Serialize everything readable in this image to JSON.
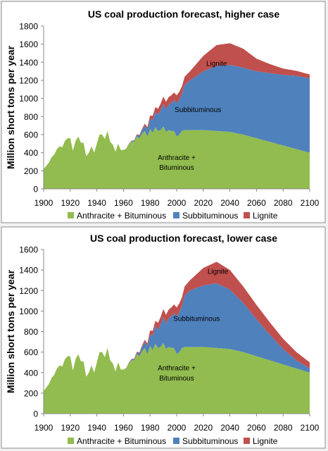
{
  "colors": {
    "anthracite_bituminous": "#92bc4f",
    "subbituminous": "#4f81bd",
    "lignite": "#c0504d",
    "frame": "#8c8c8c",
    "background": "#ffffff",
    "axis": "#888888",
    "text": "#000000"
  },
  "chart_data": [
    {
      "type": "area",
      "stacked": true,
      "title": "US coal production forecast, higher case",
      "xlabel": "",
      "ylabel": "Million short tons per year",
      "xlim": [
        1900,
        2100
      ],
      "ylim": [
        0,
        1800
      ],
      "x_ticks": [
        "1900",
        "1920",
        "1940",
        "1960",
        "1980",
        "2000",
        "2020",
        "2040",
        "2060",
        "2080",
        "2100"
      ],
      "y_ticks": [
        "0",
        "200",
        "400",
        "600",
        "800",
        "1000",
        "1200",
        "1400",
        "1600",
        "1800"
      ],
      "grid": false,
      "legend_position": "bottom",
      "legend": [
        "Anthracite + Bituminous",
        "Subbituminous",
        "Lignite"
      ],
      "annotations": [
        {
          "text": "Anthracite +",
          "x": 2000,
          "y": 350
        },
        {
          "text": "Bituminous",
          "x": 2000,
          "y": 240
        },
        {
          "text": "Subbituminous",
          "x": 2016,
          "y": 880
        },
        {
          "text": "Lignite",
          "x": 2030,
          "y": 1390
        }
      ],
      "series": [
        {
          "name": "Anthracite + Bituminous",
          "x": [
            1900,
            1902,
            1904,
            1906,
            1908,
            1910,
            1912,
            1914,
            1916,
            1918,
            1920,
            1922,
            1924,
            1926,
            1928,
            1930,
            1932,
            1934,
            1936,
            1938,
            1940,
            1942,
            1944,
            1946,
            1948,
            1950,
            1952,
            1954,
            1956,
            1958,
            1960,
            1962,
            1964,
            1966,
            1968,
            1970,
            1972,
            1974,
            1976,
            1978,
            1980,
            1982,
            1984,
            1986,
            1988,
            1990,
            1992,
            1994,
            1996,
            1998,
            2000,
            2002,
            2004,
            2006,
            2010,
            2020,
            2030,
            2040,
            2050,
            2060,
            2070,
            2080,
            2090,
            2100
          ],
          "values": [
            220,
            255,
            290,
            350,
            380,
            440,
            470,
            460,
            530,
            560,
            560,
            420,
            530,
            580,
            510,
            510,
            360,
            400,
            470,
            400,
            500,
            600,
            600,
            550,
            640,
            520,
            490,
            410,
            500,
            430,
            430,
            440,
            490,
            520,
            520,
            580,
            560,
            610,
            640,
            580,
            660,
            620,
            680,
            640,
            650,
            690,
            630,
            650,
            640,
            640,
            580,
            600,
            640,
            650,
            650,
            650,
            640,
            630,
            600,
            560,
            520,
            480,
            440,
            400
          ]
        },
        {
          "name": "Subbituminous",
          "x": [
            1900,
            1960,
            1964,
            1968,
            1970,
            1972,
            1974,
            1976,
            1978,
            1980,
            1982,
            1984,
            1986,
            1988,
            1990,
            1992,
            1994,
            1996,
            1998,
            2000,
            2002,
            2004,
            2006,
            2010,
            2020,
            2030,
            2040,
            2050,
            2060,
            2070,
            2080,
            2090,
            2100
          ],
          "values": [
            0,
            0,
            5,
            10,
            15,
            25,
            40,
            60,
            80,
            110,
            140,
            170,
            180,
            220,
            250,
            250,
            280,
            310,
            340,
            370,
            390,
            410,
            500,
            550,
            650,
            720,
            740,
            740,
            740,
            760,
            780,
            810,
            820
          ]
        },
        {
          "name": "Lignite",
          "x": [
            1900,
            1960,
            1970,
            1974,
            1978,
            1980,
            1984,
            1988,
            1990,
            1994,
            1998,
            2000,
            2004,
            2006,
            2010,
            2020,
            2030,
            2040,
            2050,
            2060,
            2070,
            2080,
            2090,
            2100
          ],
          "values": [
            0,
            0,
            8,
            15,
            25,
            40,
            55,
            75,
            80,
            85,
            85,
            85,
            85,
            90,
            100,
            170,
            230,
            240,
            210,
            140,
            100,
            70,
            55,
            45
          ]
        }
      ]
    },
    {
      "type": "area",
      "stacked": true,
      "title": "US coal production forecast, lower case",
      "xlabel": "",
      "ylabel": "Million short tons per year",
      "xlim": [
        1900,
        2100
      ],
      "ylim": [
        0,
        1600
      ],
      "x_ticks": [
        "1900",
        "1920",
        "1940",
        "1960",
        "1980",
        "2000",
        "2020",
        "2040",
        "2060",
        "2080",
        "2100"
      ],
      "y_ticks": [
        "0",
        "200",
        "400",
        "600",
        "800",
        "1000",
        "1200",
        "1400",
        "1600"
      ],
      "grid": false,
      "legend_position": "bottom",
      "legend": [
        "Anthracite + Bituminous",
        "Subbituminous",
        "Lignite"
      ],
      "annotations": [
        {
          "text": "Anthracite +",
          "x": 2000,
          "y": 450
        },
        {
          "text": "Bituminous",
          "x": 2000,
          "y": 350
        },
        {
          "text": "Subbituminous",
          "x": 2015,
          "y": 930
        },
        {
          "text": "Lignite",
          "x": 2031,
          "y": 1390
        }
      ],
      "series": [
        {
          "name": "Anthracite + Bituminous",
          "x": [
            1900,
            1902,
            1904,
            1906,
            1908,
            1910,
            1912,
            1914,
            1916,
            1918,
            1920,
            1922,
            1924,
            1926,
            1928,
            1930,
            1932,
            1934,
            1936,
            1938,
            1940,
            1942,
            1944,
            1946,
            1948,
            1950,
            1952,
            1954,
            1956,
            1958,
            1960,
            1962,
            1964,
            1966,
            1968,
            1970,
            1972,
            1974,
            1976,
            1978,
            1980,
            1982,
            1984,
            1986,
            1988,
            1990,
            1992,
            1994,
            1996,
            1998,
            2000,
            2002,
            2004,
            2006,
            2010,
            2020,
            2030,
            2040,
            2050,
            2060,
            2070,
            2080,
            2090,
            2100
          ],
          "values": [
            220,
            255,
            290,
            350,
            380,
            440,
            470,
            460,
            530,
            560,
            560,
            420,
            530,
            580,
            510,
            510,
            360,
            400,
            470,
            400,
            500,
            600,
            600,
            550,
            640,
            520,
            490,
            410,
            500,
            430,
            430,
            440,
            490,
            520,
            520,
            580,
            560,
            610,
            640,
            580,
            660,
            620,
            680,
            640,
            650,
            690,
            630,
            650,
            640,
            640,
            580,
            600,
            640,
            650,
            650,
            650,
            640,
            630,
            600,
            560,
            520,
            480,
            440,
            400
          ]
        },
        {
          "name": "Subbituminous",
          "x": [
            1900,
            1960,
            1964,
            1968,
            1970,
            1972,
            1974,
            1976,
            1978,
            1980,
            1982,
            1984,
            1986,
            1988,
            1990,
            1992,
            1994,
            1996,
            1998,
            2000,
            2002,
            2004,
            2006,
            2010,
            2020,
            2030,
            2040,
            2050,
            2060,
            2070,
            2080,
            2090,
            2100
          ],
          "values": [
            0,
            0,
            5,
            10,
            15,
            25,
            40,
            60,
            80,
            110,
            140,
            170,
            180,
            220,
            250,
            250,
            280,
            310,
            340,
            370,
            390,
            410,
            500,
            550,
            600,
            630,
            580,
            480,
            360,
            250,
            150,
            80,
            40
          ]
        },
        {
          "name": "Lignite",
          "x": [
            1900,
            1960,
            1970,
            1974,
            1978,
            1980,
            1984,
            1988,
            1990,
            1994,
            1998,
            2000,
            2004,
            2006,
            2010,
            2020,
            2030,
            2040,
            2050,
            2060,
            2070,
            2080,
            2090,
            2100
          ],
          "values": [
            0,
            0,
            8,
            15,
            25,
            40,
            55,
            75,
            80,
            85,
            85,
            85,
            85,
            90,
            100,
            170,
            210,
            190,
            160,
            140,
            120,
            100,
            80,
            60
          ]
        }
      ]
    }
  ]
}
